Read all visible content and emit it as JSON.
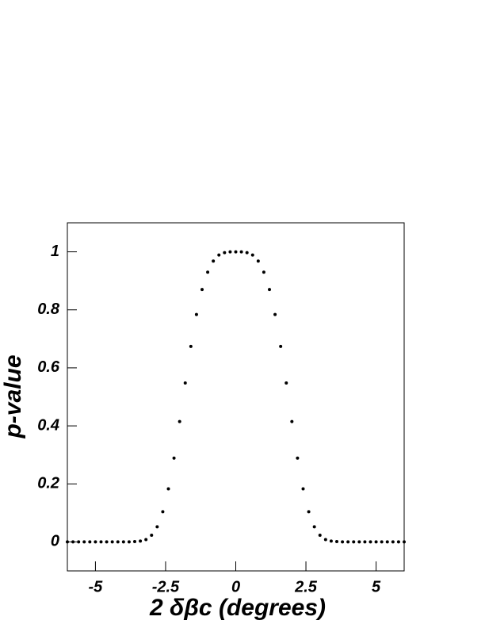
{
  "chart_data": {
    "type": "scatter",
    "x_label": "2 δβc (degrees)",
    "y_label": "p-value",
    "color": "#000000",
    "xlim": [
      -6,
      6
    ],
    "ylim": [
      -0.1,
      1.1
    ],
    "xticks": [
      -5,
      -2.5,
      0,
      2.5,
      5
    ],
    "yticks": [
      0,
      0.2,
      0.4,
      0.6,
      0.8,
      1
    ],
    "x": [
      -6,
      -5.8,
      -5.6,
      -5.4,
      -5.2,
      -5,
      -4.8,
      -4.6,
      -4.4,
      -4.2,
      -4,
      -3.8,
      -3.6,
      -3.4,
      -3.2,
      -3,
      -2.8,
      -2.6,
      -2.4,
      -2.2,
      -2,
      -1.8,
      -1.6,
      -1.4,
      -1.2,
      -1,
      -0.8,
      -0.6,
      -0.4,
      -0.2,
      0,
      0.2,
      0.4,
      0.6,
      0.8,
      1,
      1.2,
      1.4,
      1.6,
      1.8,
      2,
      2.2,
      2.4,
      2.6,
      2.8,
      3,
      3.2,
      3.4,
      3.6,
      3.8,
      4,
      4.2,
      4.4,
      4.6,
      4.8,
      5,
      5.2,
      5.4,
      5.6,
      5.8,
      6
    ],
    "values": [
      0,
      0,
      0,
      0,
      0,
      0,
      0,
      0,
      0,
      0,
      0,
      0,
      0.001,
      0.003,
      0.008,
      0.023,
      0.052,
      0.104,
      0.183,
      0.289,
      0.415,
      0.548,
      0.674,
      0.784,
      0.87,
      0.93,
      0.968,
      0.989,
      0.997,
      1,
      1,
      1,
      0.997,
      0.989,
      0.968,
      0.93,
      0.87,
      0.784,
      0.674,
      0.548,
      0.415,
      0.289,
      0.183,
      0.104,
      0.052,
      0.023,
      0.008,
      0.003,
      0.001,
      0,
      0,
      0,
      0,
      0,
      0,
      0,
      0,
      0,
      0,
      0,
      0
    ]
  }
}
